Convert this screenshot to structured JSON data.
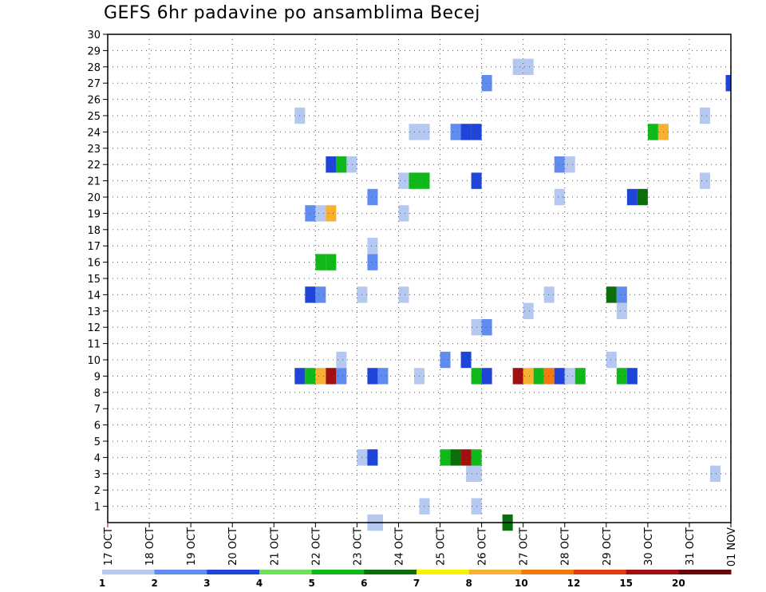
{
  "chart_data": {
    "type": "heatmap",
    "title": "GEFS 6hr padavine po ansamblima Becej",
    "xlabel": "",
    "ylabel": "",
    "x_ticks": [
      "17 OCT",
      "18 OCT",
      "19 OCT",
      "20 OCT",
      "21 OCT",
      "22 OCT",
      "23 OCT",
      "24 OCT",
      "25 OCT",
      "26 OCT",
      "27 OCT",
      "28 OCT",
      "29 OCT",
      "30 OCT",
      "31 OCT",
      "01 NOV"
    ],
    "x_unit": "6-hour steps (4 per day) from 17 OCT",
    "xlim": [
      0,
      60
    ],
    "y_ticks": [
      "1",
      "2",
      "3",
      "4",
      "5",
      "6",
      "7",
      "8",
      "9",
      "10",
      "11",
      "12",
      "13",
      "14",
      "15",
      "16",
      "17",
      "18",
      "19",
      "20",
      "21",
      "22",
      "23",
      "24",
      "25",
      "26",
      "27",
      "28",
      "29",
      "30"
    ],
    "ylim": [
      0,
      30
    ],
    "grid": true,
    "colorbar": {
      "position": "bottom",
      "labels": [
        "1",
        "2",
        "3",
        "4",
        "5",
        "6",
        "7",
        "8",
        "10",
        "12",
        "15",
        "20"
      ],
      "colors": [
        "#b4c8f0",
        "#5f8cee",
        "#1f45d8",
        "#6fe05a",
        "#10b81a",
        "#0a6e0a",
        "#f5f500",
        "#f8b030",
        "#f07a10",
        "#e03a10",
        "#a01010",
        "#6a0505"
      ]
    },
    "cells": [
      {
        "x": 25.5,
        "y": 0,
        "v": 1
      },
      {
        "x": 26,
        "y": 0,
        "v": 1
      },
      {
        "x": 38.5,
        "y": 0,
        "v": 6
      },
      {
        "x": 30.5,
        "y": 1,
        "v": 1
      },
      {
        "x": 35.5,
        "y": 1,
        "v": 1
      },
      {
        "x": 35,
        "y": 3,
        "v": 1
      },
      {
        "x": 35.5,
        "y": 3,
        "v": 1
      },
      {
        "x": 58.5,
        "y": 3,
        "v": 1
      },
      {
        "x": 24.5,
        "y": 4,
        "v": 1
      },
      {
        "x": 25.5,
        "y": 4,
        "v": 3
      },
      {
        "x": 32.5,
        "y": 4,
        "v": 5
      },
      {
        "x": 33.5,
        "y": 4,
        "v": 6
      },
      {
        "x": 34.5,
        "y": 4,
        "v": 15
      },
      {
        "x": 35.5,
        "y": 4,
        "v": 5
      },
      {
        "x": 18.5,
        "y": 9,
        "v": 3
      },
      {
        "x": 19.5,
        "y": 9,
        "v": 5
      },
      {
        "x": 20.5,
        "y": 9,
        "v": 8
      },
      {
        "x": 21.5,
        "y": 9,
        "v": 15
      },
      {
        "x": 22.5,
        "y": 9,
        "v": 2
      },
      {
        "x": 25.5,
        "y": 9,
        "v": 3
      },
      {
        "x": 26.5,
        "y": 9,
        "v": 2
      },
      {
        "x": 30,
        "y": 9,
        "v": 1
      },
      {
        "x": 35.5,
        "y": 9,
        "v": 5
      },
      {
        "x": 36.5,
        "y": 9,
        "v": 3
      },
      {
        "x": 39.5,
        "y": 9,
        "v": 15
      },
      {
        "x": 40.5,
        "y": 9,
        "v": 8
      },
      {
        "x": 41.5,
        "y": 9,
        "v": 5
      },
      {
        "x": 42.5,
        "y": 9,
        "v": 10
      },
      {
        "x": 43.5,
        "y": 9,
        "v": 3
      },
      {
        "x": 44.5,
        "y": 9,
        "v": 1
      },
      {
        "x": 45.5,
        "y": 9,
        "v": 5
      },
      {
        "x": 49.5,
        "y": 9,
        "v": 5
      },
      {
        "x": 50.5,
        "y": 9,
        "v": 3
      },
      {
        "x": 22.5,
        "y": 10,
        "v": 1
      },
      {
        "x": 32.5,
        "y": 10,
        "v": 2
      },
      {
        "x": 34.5,
        "y": 10,
        "v": 3
      },
      {
        "x": 48.5,
        "y": 10,
        "v": 1
      },
      {
        "x": 35.5,
        "y": 12,
        "v": 1
      },
      {
        "x": 36.5,
        "y": 12,
        "v": 2
      },
      {
        "x": 40.5,
        "y": 13,
        "v": 1
      },
      {
        "x": 49.5,
        "y": 13,
        "v": 1
      },
      {
        "x": 19.5,
        "y": 14,
        "v": 3
      },
      {
        "x": 20.5,
        "y": 14,
        "v": 2
      },
      {
        "x": 24.5,
        "y": 14,
        "v": 1
      },
      {
        "x": 28.5,
        "y": 14,
        "v": 1
      },
      {
        "x": 42.5,
        "y": 14,
        "v": 1
      },
      {
        "x": 48.5,
        "y": 14,
        "v": 6
      },
      {
        "x": 49.5,
        "y": 14,
        "v": 2
      },
      {
        "x": 25.5,
        "y": 16,
        "v": 2
      },
      {
        "x": 20.5,
        "y": 16,
        "v": 5
      },
      {
        "x": 21.5,
        "y": 16,
        "v": 5
      },
      {
        "x": 25.5,
        "y": 17,
        "v": 1
      },
      {
        "x": 19.5,
        "y": 19,
        "v": 2
      },
      {
        "x": 20.5,
        "y": 19,
        "v": 1
      },
      {
        "x": 21.5,
        "y": 19,
        "v": 8
      },
      {
        "x": 28.5,
        "y": 19,
        "v": 1
      },
      {
        "x": 25.5,
        "y": 20,
        "v": 2
      },
      {
        "x": 43.5,
        "y": 20,
        "v": 1
      },
      {
        "x": 50.5,
        "y": 20,
        "v": 3
      },
      {
        "x": 51.5,
        "y": 20,
        "v": 6
      },
      {
        "x": 28.5,
        "y": 21,
        "v": 1
      },
      {
        "x": 29.5,
        "y": 21,
        "v": 5
      },
      {
        "x": 30.5,
        "y": 21,
        "v": 5
      },
      {
        "x": 35.5,
        "y": 21,
        "v": 3
      },
      {
        "x": 57.5,
        "y": 21,
        "v": 1
      },
      {
        "x": 21.5,
        "y": 22,
        "v": 3
      },
      {
        "x": 22.5,
        "y": 22,
        "v": 5
      },
      {
        "x": 23.5,
        "y": 22,
        "v": 1
      },
      {
        "x": 43.5,
        "y": 22,
        "v": 2
      },
      {
        "x": 44.5,
        "y": 22,
        "v": 1
      },
      {
        "x": 29.5,
        "y": 24,
        "v": 1
      },
      {
        "x": 30.5,
        "y": 24,
        "v": 1
      },
      {
        "x": 33.5,
        "y": 24,
        "v": 2
      },
      {
        "x": 34.5,
        "y": 24,
        "v": 3
      },
      {
        "x": 35.5,
        "y": 24,
        "v": 3
      },
      {
        "x": 52.5,
        "y": 24,
        "v": 5
      },
      {
        "x": 53.5,
        "y": 24,
        "v": 8
      },
      {
        "x": 18.5,
        "y": 25,
        "v": 1
      },
      {
        "x": 57.5,
        "y": 25,
        "v": 1
      },
      {
        "x": 36.5,
        "y": 27,
        "v": 2
      },
      {
        "x": 60,
        "y": 27,
        "v": 3
      },
      {
        "x": 39.5,
        "y": 28,
        "v": 1
      },
      {
        "x": 40.5,
        "y": 28,
        "v": 1
      }
    ]
  }
}
